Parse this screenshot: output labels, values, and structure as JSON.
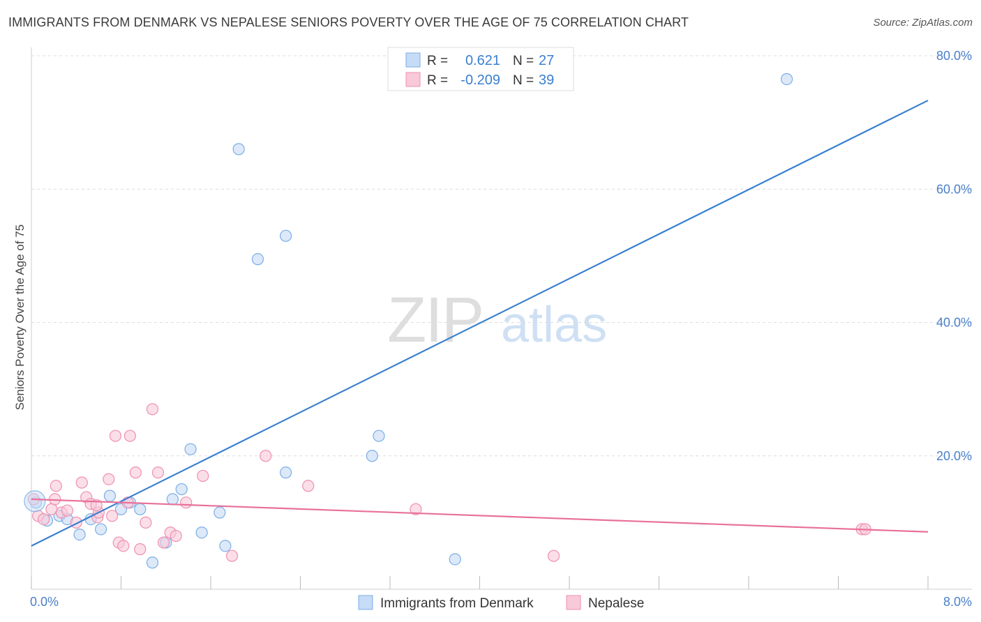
{
  "chart_data": {
    "type": "scatter",
    "title": "IMMIGRANTS FROM DENMARK VS NEPALESE SENIORS POVERTY OVER THE AGE OF 75 CORRELATION CHART",
    "source": "Source: ZipAtlas.com",
    "xlabel": "",
    "ylabel": "Seniors Poverty Over the Age of 75",
    "xlim": [
      0,
      8
    ],
    "ylim": [
      0,
      82
    ],
    "x_tick_labels": [
      "0.0%",
      "8.0%"
    ],
    "y_ticks": [
      20,
      40,
      60,
      80
    ],
    "y_tick_labels": [
      "20.0%",
      "40.0%",
      "60.0%",
      "80.0%"
    ],
    "grid": true,
    "watermark": "ZIPatlas",
    "legend_position": "bottom-center",
    "stats_box": [
      {
        "r_label": "R =",
        "r_value": "0.621",
        "n_label": "N =",
        "n_value": "27"
      },
      {
        "r_label": "R =",
        "r_value": "-0.209",
        "n_label": "N =",
        "n_value": "39"
      }
    ],
    "series": [
      {
        "name": "Immigrants from Denmark",
        "color": "#7aaee6",
        "fill": "#c6dbf5",
        "line_color": "#3a7fd0",
        "trendline": [
          [
            0,
            6.5
          ],
          [
            8,
            73.3
          ]
        ],
        "points": [
          [
            0.04,
            13.0
          ],
          [
            0.14,
            10.3
          ],
          [
            0.25,
            11.0
          ],
          [
            0.32,
            10.5
          ],
          [
            0.43,
            8.2
          ],
          [
            0.53,
            10.5
          ],
          [
            0.62,
            9.0
          ],
          [
            0.7,
            14.0
          ],
          [
            0.8,
            12.0
          ],
          [
            0.88,
            13.0
          ],
          [
            0.97,
            12.0
          ],
          [
            1.08,
            4.0
          ],
          [
            1.2,
            7.0
          ],
          [
            1.26,
            13.5
          ],
          [
            1.34,
            15.0
          ],
          [
            1.42,
            21.0
          ],
          [
            1.52,
            8.5
          ],
          [
            1.68,
            11.5
          ],
          [
            1.73,
            6.5
          ],
          [
            1.85,
            66.0
          ],
          [
            2.02,
            49.5
          ],
          [
            2.27,
            17.5
          ],
          [
            2.27,
            53.0
          ],
          [
            3.04,
            20.0
          ],
          [
            3.1,
            23.0
          ],
          [
            3.78,
            4.5
          ],
          [
            6.74,
            76.5
          ]
        ]
      },
      {
        "name": "Nepalese",
        "color": "#ef8fb0",
        "fill": "#f8c9d9",
        "line_color": "#e8709a",
        "trendline": [
          [
            0,
            13.5
          ],
          [
            8,
            8.6
          ]
        ],
        "points": [
          [
            0.02,
            13.5
          ],
          [
            0.06,
            11.0
          ],
          [
            0.11,
            10.5
          ],
          [
            0.18,
            12.0
          ],
          [
            0.21,
            13.5
          ],
          [
            0.22,
            15.5
          ],
          [
            0.27,
            11.5
          ],
          [
            0.32,
            11.8
          ],
          [
            0.4,
            10.0
          ],
          [
            0.45,
            16.0
          ],
          [
            0.49,
            13.8
          ],
          [
            0.53,
            12.8
          ],
          [
            0.59,
            10.8
          ],
          [
            0.6,
            11.5
          ],
          [
            0.69,
            16.5
          ],
          [
            0.72,
            11.0
          ],
          [
            0.75,
            23.0
          ],
          [
            0.78,
            7.0
          ],
          [
            0.82,
            6.5
          ],
          [
            0.86,
            13.0
          ],
          [
            0.88,
            23.0
          ],
          [
            0.93,
            17.5
          ],
          [
            1.02,
            10.0
          ],
          [
            1.08,
            27.0
          ],
          [
            1.13,
            17.5
          ],
          [
            1.18,
            7.0
          ],
          [
            1.24,
            8.5
          ],
          [
            1.29,
            8.0
          ],
          [
            1.38,
            13.0
          ],
          [
            1.53,
            17.0
          ],
          [
            1.79,
            5.0
          ],
          [
            2.09,
            20.0
          ],
          [
            2.47,
            15.5
          ],
          [
            3.43,
            12.0
          ],
          [
            4.66,
            5.0
          ],
          [
            7.41,
            9.0
          ],
          [
            7.44,
            9.0
          ],
          [
            0.58,
            12.6
          ],
          [
            0.97,
            6.0
          ]
        ]
      }
    ]
  }
}
